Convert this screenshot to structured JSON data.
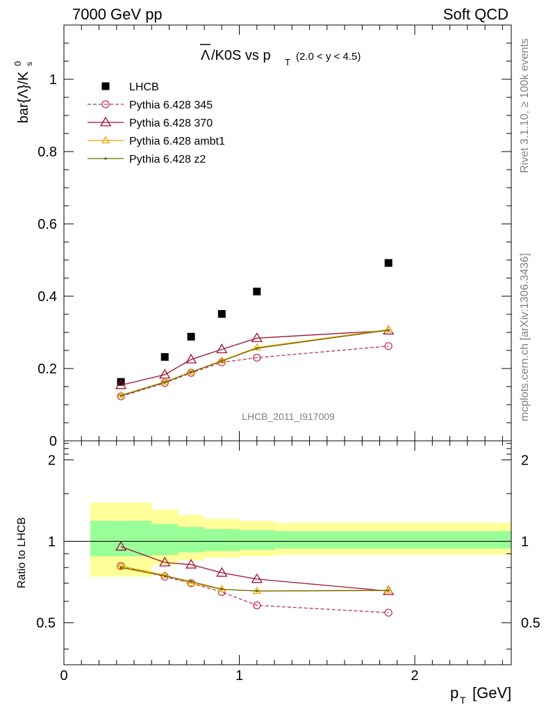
{
  "header": {
    "left": "7000 GeV pp",
    "right": "Soft QCD"
  },
  "title": {
    "main": "/K0S vs p",
    "main_bar": "Λ",
    "main_sub": "T",
    "range": "(2.0 < y < 4.5)"
  },
  "side_labels": {
    "rivet": "Rivet 3.1.10, ≥ 100k events",
    "mcplots": "mcplots.cern.ch [arXiv:1306.3436]"
  },
  "watermark": "LHCB_2011_I917009",
  "chart_data": [
    {
      "type": "scatter",
      "panel": "main",
      "ylabel": "bar{Λ}/K",
      "ylabel_sup": "0",
      "ylabel_sub": "s",
      "xlim": [
        0,
        2.55
      ],
      "ylim": [
        0,
        1.15
      ],
      "yticks": [
        0,
        0.2,
        0.4,
        0.6,
        0.8,
        1
      ],
      "ytick_labels": [
        "0",
        "0.2",
        "0.4",
        "0.6",
        "0.8",
        "1"
      ],
      "x": [
        0.325,
        0.575,
        0.725,
        0.9,
        1.1,
        1.85
      ],
      "series": [
        {
          "name": "LHCB",
          "color": "#000000",
          "marker": "square",
          "line": "none",
          "values": [
            0.163,
            0.232,
            0.288,
            0.351,
            0.413,
            0.492
          ]
        },
        {
          "name": "Pythia 6.428 345",
          "color": "#c0334d",
          "marker": "circle",
          "line": "dashed",
          "values": [
            0.123,
            0.16,
            0.188,
            0.217,
            0.23,
            0.262
          ]
        },
        {
          "name": "Pythia 6.428 370",
          "color": "#a00e2e",
          "marker": "triangle",
          "line": "solid",
          "values": [
            0.154,
            0.183,
            0.225,
            0.253,
            0.284,
            0.305
          ]
        },
        {
          "name": "Pythia 6.428 ambt1",
          "color": "#f0a500",
          "marker": "triangle-small",
          "line": "solid",
          "values": [
            0.126,
            0.163,
            0.19,
            0.222,
            0.258,
            0.308
          ]
        },
        {
          "name": "Pythia 6.428 z2",
          "color": "#6b6b00",
          "marker": "dot",
          "line": "solid",
          "values": [
            0.125,
            0.162,
            0.19,
            0.221,
            0.256,
            0.306
          ]
        }
      ]
    },
    {
      "type": "line",
      "panel": "ratio",
      "ylabel": "Ratio to LHCB",
      "xlabel": "p",
      "xlabel_sub": "T",
      "xlabel_unit": "[GeV]",
      "xlim": [
        0,
        2.55
      ],
      "ylim": [
        0.35,
        2.35
      ],
      "yticks": [
        0.5,
        1,
        2
      ],
      "ytick_labels": [
        "0.5",
        "1",
        "2"
      ],
      "xticks": [
        0,
        1,
        2
      ],
      "xtick_labels": [
        "0",
        "1",
        "2"
      ],
      "x": [
        0.325,
        0.575,
        0.725,
        0.9,
        1.1,
        1.85
      ],
      "bands": {
        "edges": [
          0.15,
          0.5,
          0.65,
          0.8,
          1.0,
          1.2,
          2.55
        ],
        "inner_lo": [
          0.88,
          0.89,
          0.91,
          0.92,
          0.93,
          0.94
        ],
        "inner_hi": [
          1.19,
          1.16,
          1.13,
          1.11,
          1.1,
          1.09
        ],
        "outer_lo": [
          0.74,
          0.82,
          0.85,
          0.87,
          0.88,
          0.89
        ],
        "outer_hi": [
          1.39,
          1.31,
          1.25,
          1.21,
          1.19,
          1.17
        ],
        "inner_color": "#99ff99",
        "outer_color": "#ffff99"
      },
      "series": [
        {
          "name": "Pythia 6.428 345",
          "color": "#c0334d",
          "marker": "circle",
          "line": "dashed",
          "values": [
            0.81,
            0.74,
            0.7,
            0.65,
            0.58,
            0.545
          ]
        },
        {
          "name": "Pythia 6.428 370",
          "color": "#a00e2e",
          "marker": "triangle",
          "line": "solid",
          "values": [
            0.955,
            0.835,
            0.82,
            0.765,
            0.725,
            0.655
          ]
        },
        {
          "name": "Pythia 6.428 ambt1",
          "color": "#f0a500",
          "marker": "triangle-small",
          "line": "solid",
          "values": [
            0.81,
            0.75,
            0.7,
            0.665,
            0.655,
            0.66
          ]
        },
        {
          "name": "Pythia 6.428 z2",
          "color": "#6b6b00",
          "marker": "dot",
          "line": "solid",
          "values": [
            0.8,
            0.745,
            0.71,
            0.665,
            0.655,
            0.658
          ]
        }
      ]
    }
  ]
}
